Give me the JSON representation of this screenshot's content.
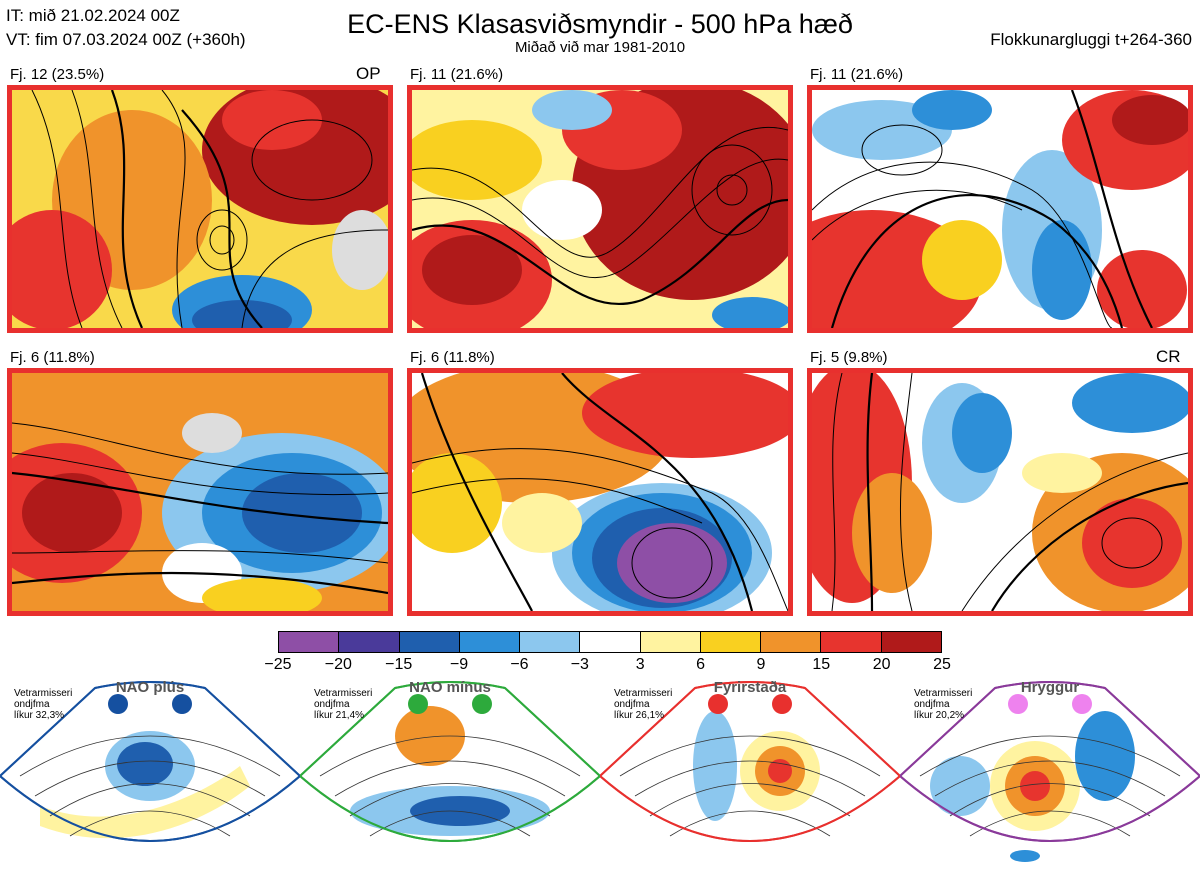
{
  "header": {
    "initial_time": "IT: mið 21.02.2024 00Z",
    "valid_time": "VT: fim 07.03.2024 00Z  (+360h)",
    "title": "EC-ENS Klasasviðsmyndir - 500 hPa hæð",
    "subtitle": "Miðað við mar 1981-2010",
    "window": "Flokkunargluggi t+264-360"
  },
  "panels": [
    {
      "label": "Fj. 12 (23.5%)",
      "tag": "OP"
    },
    {
      "label": "Fj. 11 (21.6%)",
      "tag": ""
    },
    {
      "label": "Fj. 11 (21.6%)",
      "tag": ""
    },
    {
      "label": "Fj. 6 (11.8%)",
      "tag": ""
    },
    {
      "label": "Fj. 6 (11.8%)",
      "tag": ""
    },
    {
      "label": "Fj. 5 (9.8%)",
      "tag": "CR"
    }
  ],
  "colorbar": {
    "ticks": [
      "−25",
      "−20",
      "−15",
      "−9",
      "−6",
      "−3",
      "3",
      "6",
      "9",
      "15",
      "20",
      "25"
    ],
    "colors": [
      "#8e4fa6",
      "#4a3a9a",
      "#1f5fae",
      "#2d8fd8",
      "#8cc7ee",
      "#ffffff",
      "#fff3a0",
      "#f9d020",
      "#f0932b",
      "#e7342e",
      "#b01a1a"
    ]
  },
  "regimes": [
    {
      "name": "NAO plús",
      "note": [
        "Vetrarmisseri",
        "ondjfma",
        "líkur 32,3%"
      ],
      "color": "#1550a0",
      "dot": "#1550a0"
    },
    {
      "name": "NAO mínus",
      "note": [
        "Vetrarmisseri",
        "ondjfma",
        "líkur 21,4%"
      ],
      "color": "#2daa3c",
      "dot": "#2daa3c"
    },
    {
      "name": "Fyrirstaða",
      "note": [
        "Vetrarmisseri",
        "ondjfma",
        "líkur 26,1%"
      ],
      "color": "#e8302e",
      "dot": "#e8302e"
    },
    {
      "name": "Hryggur",
      "note": [
        "Vetrarmisseri",
        "ondjfma",
        "líkur 20,2%"
      ],
      "color": "#8a3a9a",
      "dot": "#ee82ee"
    }
  ]
}
